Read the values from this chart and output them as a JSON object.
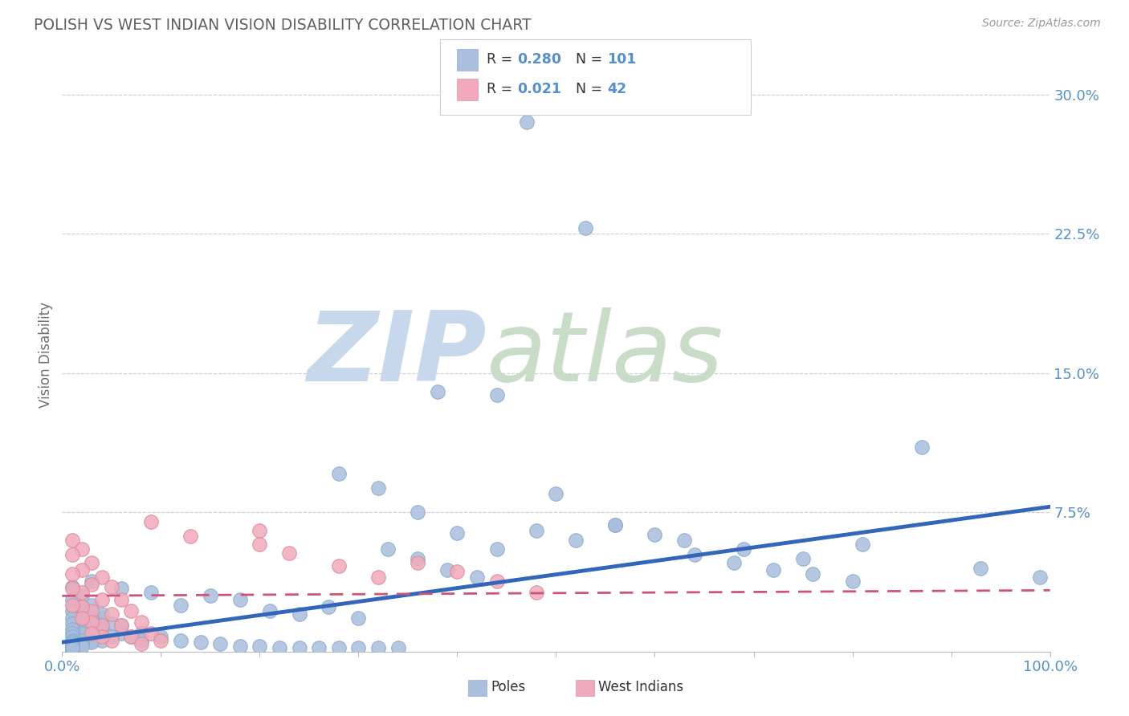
{
  "title": "POLISH VS WEST INDIAN VISION DISABILITY CORRELATION CHART",
  "source": "Source: ZipAtlas.com",
  "ylabel": "Vision Disability",
  "axis_label_color": "#5590CC",
  "grid_color": "#CCCCDD",
  "title_color": "#606060",
  "background_color": "#FFFFFF",
  "blue_color": "#AABEDD",
  "pink_color": "#F0AABB",
  "blue_edge_color": "#88AACC",
  "pink_edge_color": "#DD8899",
  "blue_line_color": "#3366BB",
  "pink_line_color": "#CC5577",
  "R_blue": 0.28,
  "N_blue": 101,
  "R_pink": 0.021,
  "N_pink": 42,
  "legend_label_blue": "Poles",
  "legend_label_pink": "West Indians",
  "xlim": [
    0.0,
    1.0
  ],
  "ylim": [
    0.0,
    0.32
  ],
  "blue_trend_y_start": 0.005,
  "blue_trend_y_end": 0.078,
  "pink_trend_y_start": 0.03,
  "pink_trend_y_end": 0.033,
  "blue_scatter_x": [
    0.47,
    0.53,
    0.38,
    0.44,
    0.5,
    0.56,
    0.63,
    0.69,
    0.75,
    0.81,
    0.87,
    0.93,
    0.99,
    0.28,
    0.32,
    0.36,
    0.4,
    0.44,
    0.48,
    0.52,
    0.56,
    0.6,
    0.64,
    0.68,
    0.72,
    0.76,
    0.8,
    0.03,
    0.06,
    0.09,
    0.12,
    0.15,
    0.18,
    0.21,
    0.24,
    0.27,
    0.3,
    0.33,
    0.36,
    0.39,
    0.42,
    0.02,
    0.04,
    0.06,
    0.08,
    0.1,
    0.12,
    0.14,
    0.16,
    0.18,
    0.2,
    0.22,
    0.24,
    0.26,
    0.28,
    0.3,
    0.32,
    0.34,
    0.01,
    0.02,
    0.03,
    0.04,
    0.05,
    0.06,
    0.07,
    0.08,
    0.01,
    0.02,
    0.03,
    0.04,
    0.05,
    0.01,
    0.02,
    0.03,
    0.04,
    0.01,
    0.02,
    0.03,
    0.01,
    0.02,
    0.03,
    0.01,
    0.02,
    0.01,
    0.02,
    0.01,
    0.02,
    0.01,
    0.01,
    0.01,
    0.01,
    0.01,
    0.01,
    0.01,
    0.01,
    0.01
  ],
  "blue_scatter_y": [
    0.285,
    0.228,
    0.14,
    0.138,
    0.085,
    0.068,
    0.06,
    0.055,
    0.05,
    0.058,
    0.11,
    0.045,
    0.04,
    0.096,
    0.088,
    0.075,
    0.064,
    0.055,
    0.065,
    0.06,
    0.068,
    0.063,
    0.052,
    0.048,
    0.044,
    0.042,
    0.038,
    0.038,
    0.034,
    0.032,
    0.025,
    0.03,
    0.028,
    0.022,
    0.02,
    0.024,
    0.018,
    0.055,
    0.05,
    0.044,
    0.04,
    0.022,
    0.018,
    0.014,
    0.01,
    0.008,
    0.006,
    0.005,
    0.004,
    0.003,
    0.003,
    0.002,
    0.002,
    0.002,
    0.002,
    0.002,
    0.002,
    0.002,
    0.035,
    0.03,
    0.025,
    0.02,
    0.015,
    0.01,
    0.008,
    0.006,
    0.028,
    0.024,
    0.018,
    0.012,
    0.008,
    0.022,
    0.016,
    0.01,
    0.006,
    0.018,
    0.012,
    0.006,
    0.015,
    0.01,
    0.005,
    0.012,
    0.006,
    0.01,
    0.004,
    0.008,
    0.003,
    0.006,
    0.002,
    0.005,
    0.002,
    0.004,
    0.001,
    0.003,
    0.001,
    0.002
  ],
  "pink_scatter_x": [
    0.01,
    0.02,
    0.03,
    0.04,
    0.05,
    0.06,
    0.07,
    0.08,
    0.09,
    0.1,
    0.01,
    0.02,
    0.03,
    0.04,
    0.05,
    0.06,
    0.07,
    0.08,
    0.01,
    0.02,
    0.03,
    0.04,
    0.05,
    0.01,
    0.02,
    0.03,
    0.04,
    0.09,
    0.13,
    0.2,
    0.2,
    0.23,
    0.28,
    0.32,
    0.36,
    0.4,
    0.44,
    0.48,
    0.01,
    0.02,
    0.03
  ],
  "pink_scatter_y": [
    0.06,
    0.055,
    0.048,
    0.04,
    0.035,
    0.028,
    0.022,
    0.016,
    0.01,
    0.006,
    0.052,
    0.044,
    0.036,
    0.028,
    0.02,
    0.014,
    0.008,
    0.004,
    0.042,
    0.032,
    0.022,
    0.014,
    0.006,
    0.034,
    0.024,
    0.016,
    0.008,
    0.07,
    0.062,
    0.065,
    0.058,
    0.053,
    0.046,
    0.04,
    0.048,
    0.043,
    0.038,
    0.032,
    0.025,
    0.018,
    0.01
  ]
}
